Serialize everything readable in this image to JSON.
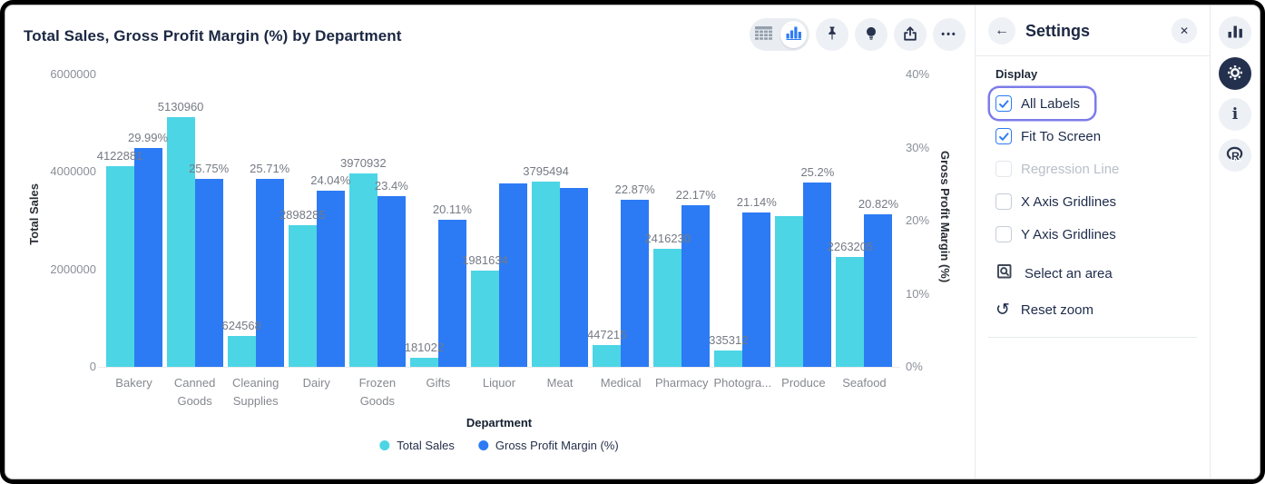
{
  "header": {
    "title": "Total Sales, Gross Profit Margin (%) by Department"
  },
  "chart_toolbar": {
    "view_toggle": [
      "table-view",
      "chart-view"
    ],
    "active_view": "chart-view",
    "buttons": [
      "pin",
      "insights-bulb",
      "share-export",
      "more-options"
    ]
  },
  "chart_data": {
    "type": "bar",
    "title": "Total Sales, Gross Profit Margin (%) by Department",
    "xlabel": "Department",
    "categories": [
      "Bakery",
      "Canned Goods",
      "Cleaning Supplies",
      "Dairy",
      "Frozen Goods",
      "Gifts",
      "Liquor",
      "Meat",
      "Medical",
      "Pharmacy",
      "Photogra...",
      "Produce",
      "Seafood"
    ],
    "series": [
      {
        "name": "Total Sales",
        "axis": "left",
        "color": "#4cd5e5",
        "values": [
          4122881,
          5130960,
          624568,
          2898285,
          3970932,
          181022,
          1981634,
          3795494,
          447215,
          2416230,
          335312,
          3100000,
          2263205
        ],
        "data_labels": [
          "4122881",
          "5130960",
          "624568",
          "2898285",
          "3970932",
          "181022",
          "1981634",
          "3795494",
          "447215",
          "2416230",
          "335312",
          null,
          "2263205"
        ]
      },
      {
        "name": "Gross Profit Margin (%)",
        "axis": "right",
        "color": "#2c7bf4",
        "values": [
          29.99,
          25.75,
          25.71,
          24.04,
          23.4,
          20.11,
          25.1,
          24.5,
          22.87,
          22.17,
          21.14,
          25.2,
          20.82
        ],
        "data_labels": [
          "29.99%",
          "25.75%",
          "25.71%",
          "24.04%",
          "23.4%",
          "20.11%",
          null,
          null,
          "22.87%",
          "22.17%",
          "21.14%",
          "25.2%",
          "20.82%"
        ]
      }
    ],
    "left_axis": {
      "title": "Total Sales",
      "max": 6000000,
      "ticks": [
        {
          "label": "6000000",
          "value": 6000000
        },
        {
          "label": "4000000",
          "value": 4000000
        },
        {
          "label": "2000000",
          "value": 2000000
        },
        {
          "label": "0",
          "value": 0
        }
      ]
    },
    "right_axis": {
      "title": "Gross Profit Margin (%)",
      "max": 40,
      "ticks": [
        {
          "label": "40%",
          "value": 40
        },
        {
          "label": "30%",
          "value": 30
        },
        {
          "label": "20%",
          "value": 20
        },
        {
          "label": "10%",
          "value": 10
        },
        {
          "label": "0%",
          "value": 0
        }
      ]
    },
    "legend": [
      "Total Sales",
      "Gross Profit Margin (%)"
    ],
    "gridlines": {
      "x": false,
      "y": false
    }
  },
  "settings_panel": {
    "title": "Settings",
    "section": "Display",
    "checkboxes": [
      {
        "label": "All Labels",
        "checked": true,
        "disabled": false,
        "focused": true
      },
      {
        "label": "Fit To Screen",
        "checked": true,
        "disabled": false,
        "focused": false
      },
      {
        "label": "Regression Line",
        "checked": false,
        "disabled": true,
        "focused": false
      },
      {
        "label": "X Axis Gridlines",
        "checked": false,
        "disabled": false,
        "focused": false
      },
      {
        "label": "Y Axis Gridlines",
        "checked": false,
        "disabled": false,
        "focused": false
      }
    ],
    "actions": [
      {
        "label": "Select an area",
        "icon": "area-select-icon"
      },
      {
        "label": "Reset zoom",
        "icon": "reset-zoom-icon"
      }
    ]
  },
  "right_rail": {
    "icons": [
      "bar-chart",
      "settings-gear",
      "info",
      "r-logo"
    ],
    "active": "settings-gear"
  },
  "colors": {
    "accent_blue": "#2c7bf4",
    "accent_cyan": "#4cd5e5",
    "navy": "#24314e",
    "label_gray": "#757a84",
    "focus_ring": "#7d7ce9"
  }
}
